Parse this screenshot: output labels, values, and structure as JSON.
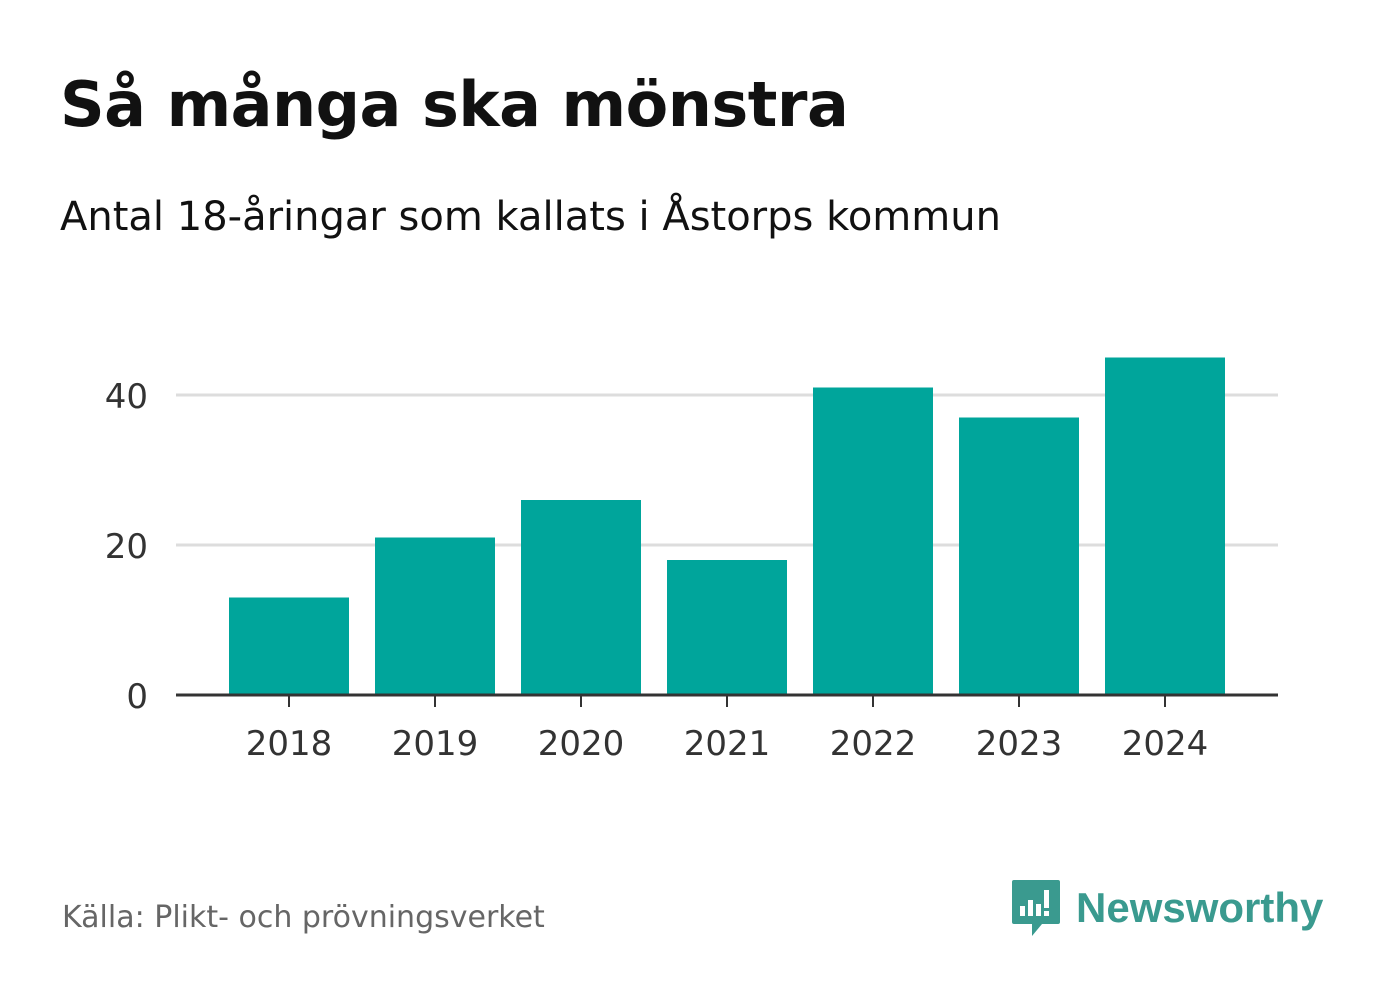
{
  "header": {
    "title": "Så många ska mönstra",
    "subtitle": "Antal 18-åringar som kallats i Åstorps kommun"
  },
  "footer": {
    "source": "Källa: Plikt- och prövningsverket",
    "brand": "Newsworthy",
    "brand_icon": "bar-chart-speech-bubble-icon"
  },
  "colors": {
    "bar": "#00a59b",
    "grid": "#dddddd",
    "axis": "#333333",
    "brand": "#3a9a8f"
  },
  "chart_data": {
    "type": "bar",
    "categories": [
      "2018",
      "2019",
      "2020",
      "2021",
      "2022",
      "2023",
      "2024"
    ],
    "values": [
      13,
      21,
      26,
      18,
      41,
      37,
      45
    ],
    "title": "Så många ska mönstra",
    "subtitle": "Antal 18-åringar som kallats i Åstorps kommun",
    "xlabel": "",
    "ylabel": "",
    "ylim": [
      0,
      45
    ],
    "yticks": [
      0,
      20,
      40
    ],
    "grid": true,
    "legend": "none"
  }
}
